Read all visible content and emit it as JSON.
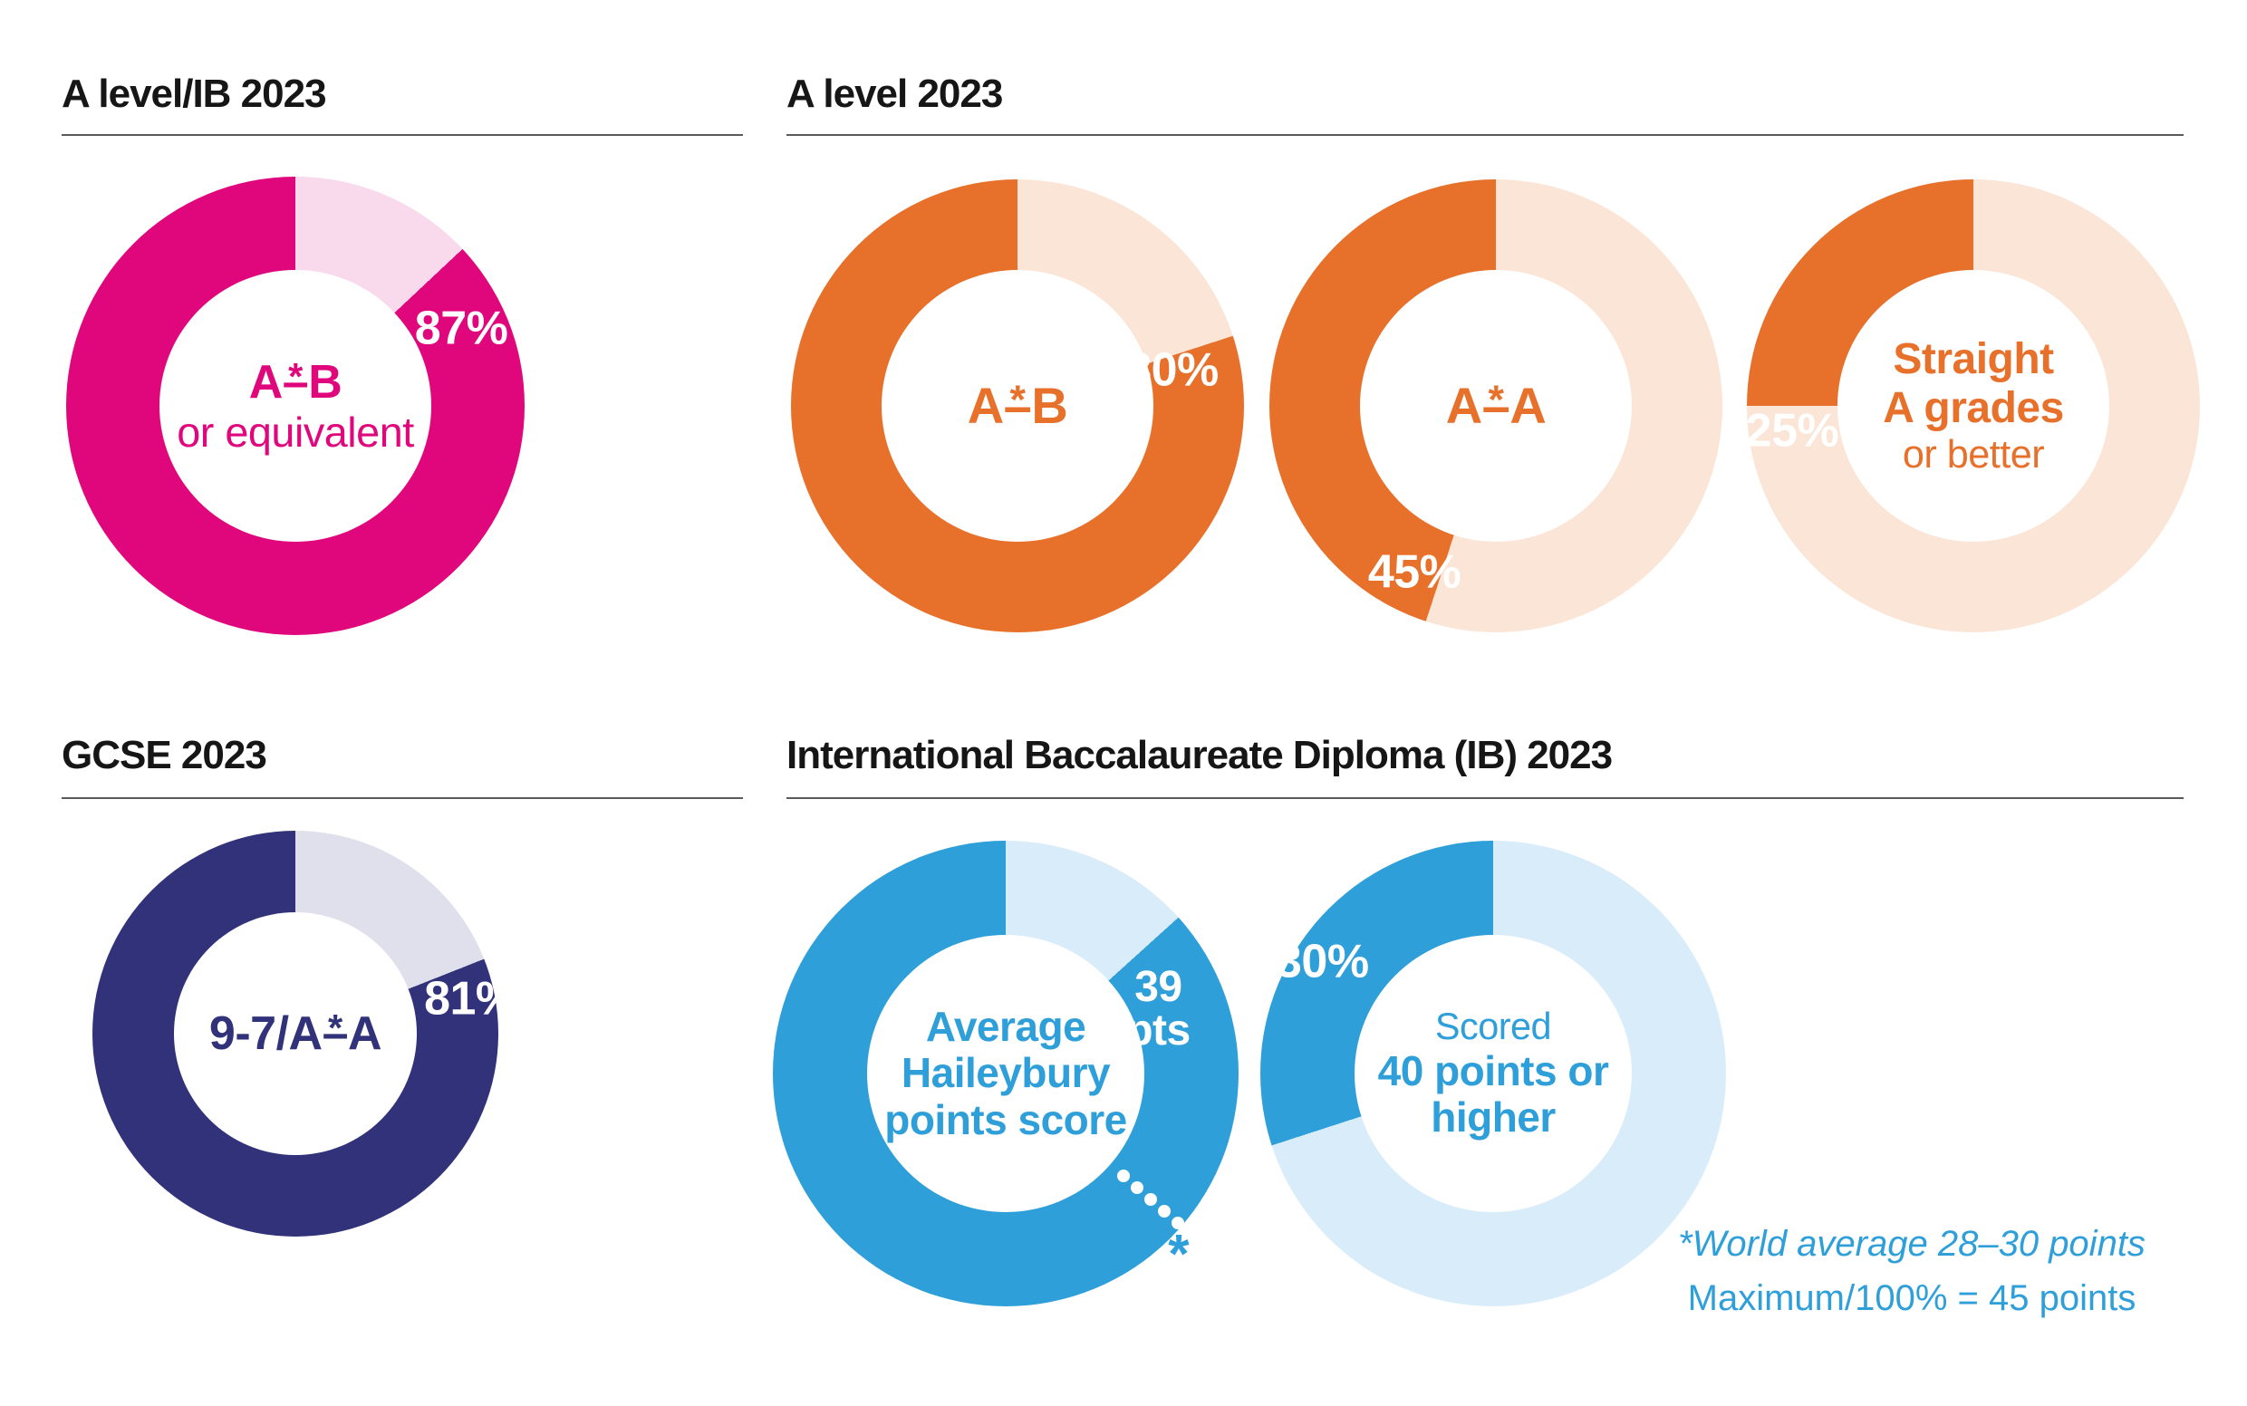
{
  "sections": [
    {
      "title": "A level/IB 2023"
    },
    {
      "title": "A level 2023"
    },
    {
      "title": "GCSE 2023"
    },
    {
      "title": "International Baccalaureate Diploma (IB) 2023"
    }
  ],
  "colors": {
    "pink": "#E0077D",
    "pink_track": "#F9D9EC",
    "orange": "#E7702B",
    "orange_track": "#FBE5D6",
    "navy": "#32327B",
    "navy_track": "#E0E0EC",
    "blue": "#2E9FD9",
    "blue_track": "#D9ECF9",
    "title_text": "#161616",
    "rule": "#5a5a5a",
    "footnote_text": "#2E9FD9"
  },
  "chart_data": {
    "type": "donut-set",
    "marker_symbol": "*",
    "annotations": [
      "*World average 28–30 points",
      "Maximum/100% = 45 points"
    ],
    "donuts": [
      {
        "id": "alevel-ib-a-star-b",
        "section": "A level/IB 2023",
        "pct": 87,
        "arc_label_lines": [
          "87%"
        ],
        "center_lines": [
          {
            "text": "A*–B",
            "bold": true
          },
          {
            "text": "or equivalent",
            "bold": false
          }
        ],
        "color": "#E0077D",
        "track_color": "#F9D9EC"
      },
      {
        "id": "alevel-a-star-b",
        "section": "A level 2023",
        "pct": 80,
        "arc_label_lines": [
          "80%"
        ],
        "center_lines": [
          {
            "text": "A*–B",
            "bold": true
          }
        ],
        "color": "#E7702B",
        "track_color": "#FBE5D6"
      },
      {
        "id": "alevel-a-star-a",
        "section": "A level 2023",
        "pct": 45,
        "arc_label_lines": [
          "45%"
        ],
        "center_lines": [
          {
            "text": "A*–A",
            "bold": true
          }
        ],
        "color": "#E7702B",
        "track_color": "#FBE5D6"
      },
      {
        "id": "alevel-straight-a-grades",
        "section": "A level 2023",
        "pct": 25,
        "arc_label_lines": [
          "25%"
        ],
        "center_lines": [
          {
            "text": "Straight",
            "bold": true
          },
          {
            "text": "A grades",
            "bold": true
          },
          {
            "text": "or better",
            "bold": false
          }
        ],
        "color": "#E7702B",
        "track_color": "#FBE5D6"
      },
      {
        "id": "gcse-9-7-a-star-a",
        "section": "GCSE 2023",
        "pct": 81,
        "arc_label_lines": [
          "81%"
        ],
        "center_lines": [
          {
            "text": "9-7/A*–A",
            "bold": true
          }
        ],
        "color": "#32327B",
        "track_color": "#E0E0EC"
      },
      {
        "id": "ib-average-points-score",
        "section": "International Baccalaureate Diploma (IB) 2023",
        "pct": 86.7,
        "value": 39,
        "max": 45,
        "arc_label_lines": [
          "39",
          "pts"
        ],
        "center_lines": [
          {
            "text": "Average",
            "bold": true
          },
          {
            "text": "Haileybury",
            "bold": true
          },
          {
            "text": "points score",
            "bold": true
          }
        ],
        "color": "#2E9FD9",
        "track_color": "#D9ECF9",
        "marker_note": "world average 28–30 points"
      },
      {
        "id": "ib-scored-40-or-higher",
        "section": "International Baccalaureate Diploma (IB) 2023",
        "pct": 30,
        "arc_label_lines": [
          "30%"
        ],
        "center_lines": [
          {
            "text": "Scored",
            "bold": false
          },
          {
            "text": "40 points or",
            "bold": true
          },
          {
            "text": "higher",
            "bold": true
          }
        ],
        "color": "#2E9FD9",
        "track_color": "#D9ECF9"
      }
    ]
  }
}
